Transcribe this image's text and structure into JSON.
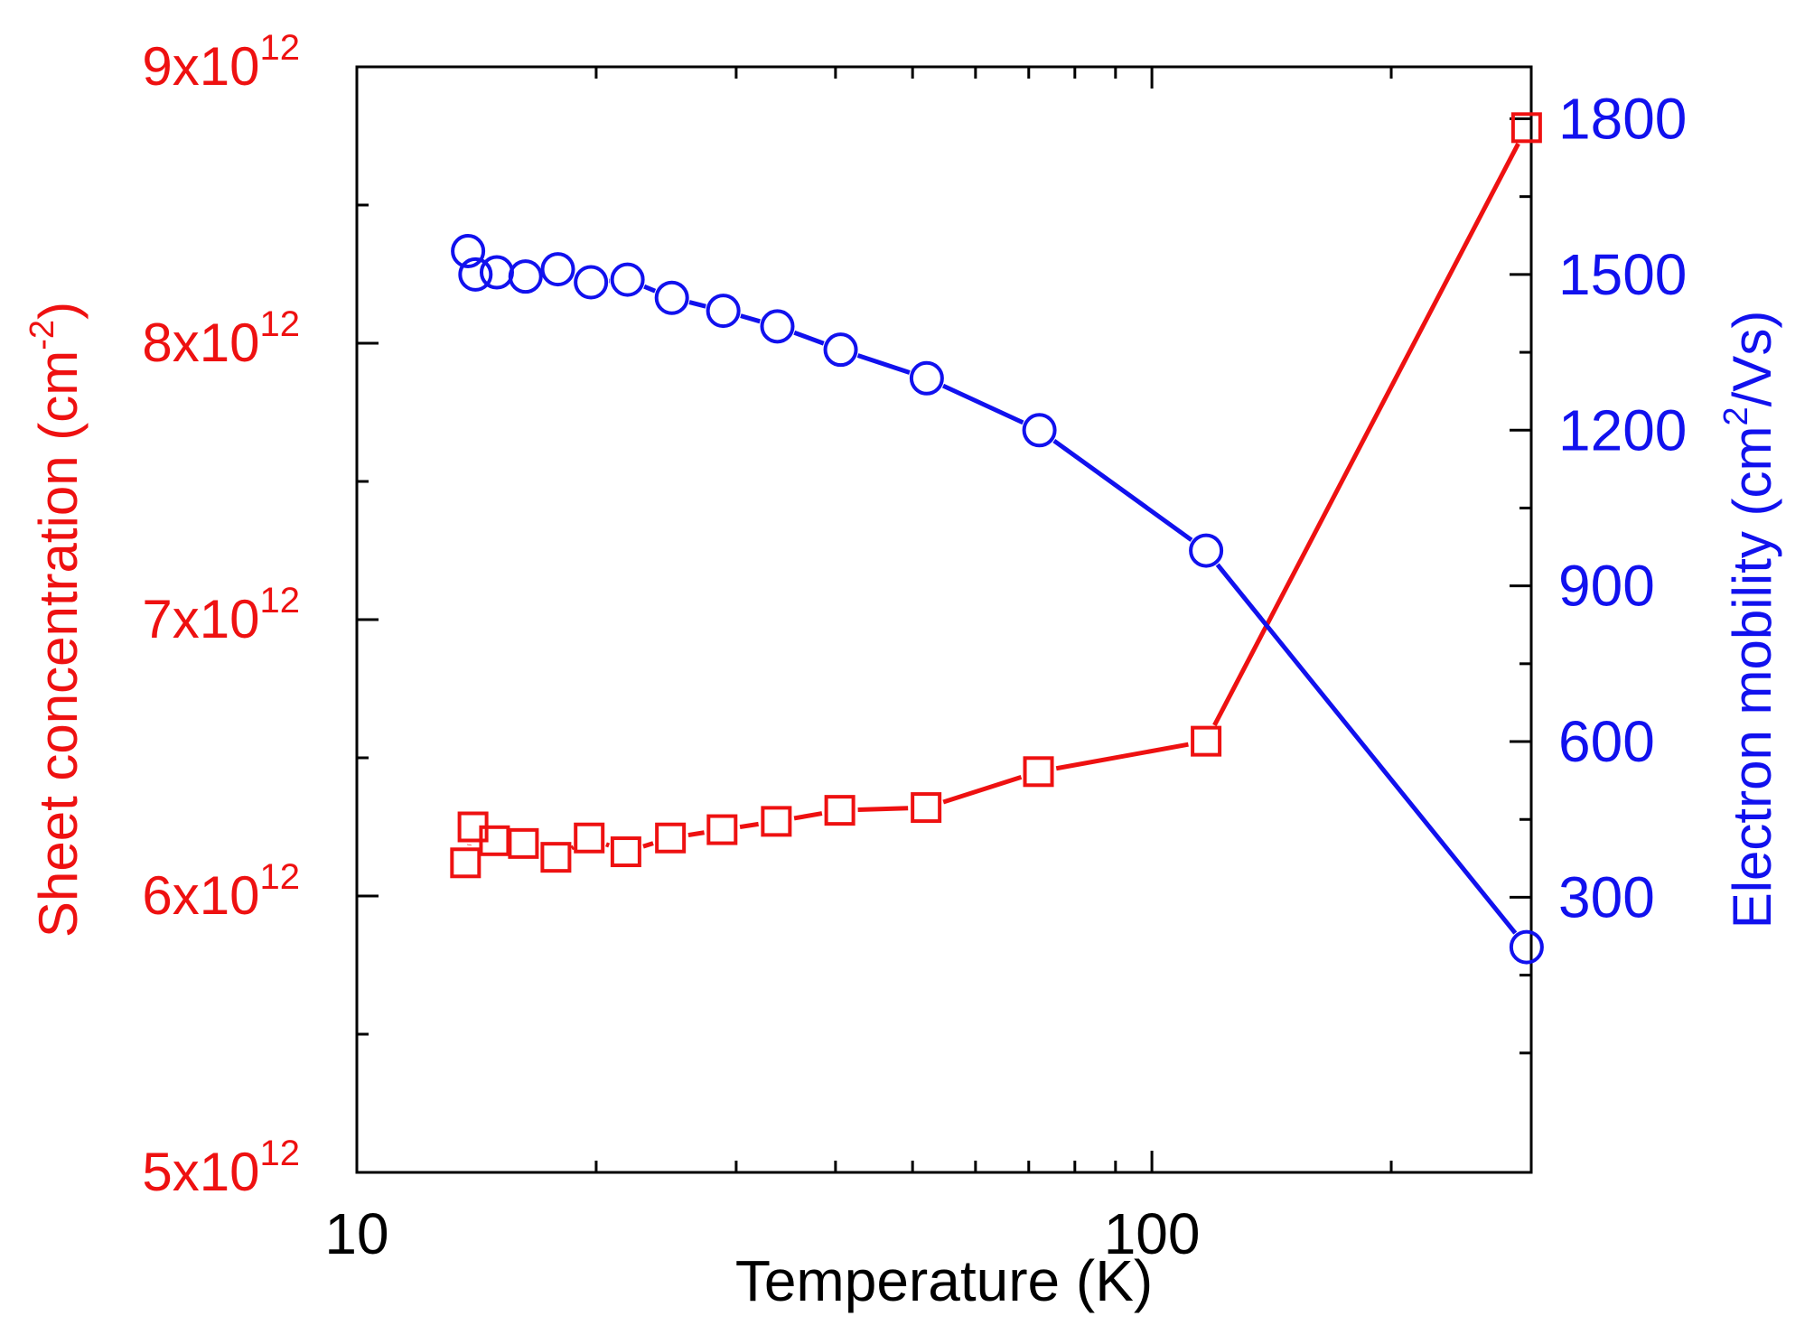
{
  "chart_data": {
    "type": "line",
    "xscale": "log",
    "xlim": [
      10,
      300
    ],
    "xlabel": "Temperature (K)",
    "x_ticks": [
      {
        "value": 10,
        "label": "10"
      },
      {
        "value": 100,
        "label": "100"
      }
    ],
    "left_axis": {
      "label_main": "Sheet concentration (cm",
      "label_sup": "-2",
      "label_end": ")",
      "ylim": [
        5000000000000.0,
        9000000000000.0
      ],
      "ticks": [
        {
          "value": 5000000000000.0,
          "mant": "5x10",
          "exp": "12"
        },
        {
          "value": 6000000000000.0,
          "mant": "6x10",
          "exp": "12"
        },
        {
          "value": 7000000000000.0,
          "mant": "7x10",
          "exp": "12"
        },
        {
          "value": 8000000000000.0,
          "mant": "8x10",
          "exp": "12"
        },
        {
          "value": 9000000000000.0,
          "mant": "9x10",
          "exp": "12"
        }
      ]
    },
    "right_axis": {
      "label_main": "Electron mobility (cm",
      "label_sup": "2",
      "label_end": "/Vs)",
      "ylim": [
        -230,
        1900
      ],
      "ticks": [
        {
          "value": 300,
          "label": "300"
        },
        {
          "value": 600,
          "label": "600"
        },
        {
          "value": 900,
          "label": "900"
        },
        {
          "value": 1200,
          "label": "1200"
        },
        {
          "value": 1500,
          "label": "1500"
        },
        {
          "value": 1800,
          "label": "1800"
        }
      ]
    },
    "series": [
      {
        "name": "Sheet concentration",
        "axis": "left",
        "marker": "square",
        "color": "#ee1111",
        "x": [
          13.7,
          14.0,
          14.9,
          16.2,
          17.8,
          19.6,
          21.8,
          24.8,
          28.8,
          33.7,
          40.5,
          52.0,
          72.0,
          117,
          296
        ],
        "y": [
          6120000000000.0,
          6250000000000.0,
          6200000000000.0,
          6190000000000.0,
          6140000000000.0,
          6210000000000.0,
          6160000000000.0,
          6210000000000.0,
          6240000000000.0,
          6270000000000.0,
          6310000000000.0,
          6320000000000.0,
          6450000000000.0,
          6560000000000.0,
          8780000000000.0
        ]
      },
      {
        "name": "Electron mobility",
        "axis": "right",
        "marker": "circle",
        "color": "#1111ee",
        "x": [
          13.8,
          14.1,
          15.0,
          16.3,
          17.9,
          19.7,
          21.9,
          24.9,
          28.9,
          33.8,
          40.6,
          52.1,
          72.2,
          117,
          296
        ],
        "y": [
          1545,
          1500,
          1504,
          1496,
          1510,
          1485,
          1490,
          1455,
          1430,
          1400,
          1355,
          1300,
          1200,
          968,
          204
        ]
      }
    ]
  }
}
